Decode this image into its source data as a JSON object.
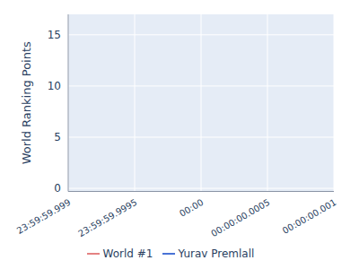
{
  "chart_data": {
    "type": "line",
    "ylabel": "World Ranking Points",
    "x": [
      1735689600000
    ],
    "series": [
      {
        "name": "Yurav Premlall",
        "color": "#2f5fd0",
        "values": [
          null
        ]
      },
      {
        "name": "World #1",
        "color": "#e07070",
        "values": [
          null
        ]
      }
    ],
    "xlim": [
      1735689599999,
      1735689600001
    ],
    "xticks": [
      {
        "value": 1735689599999,
        "label": "23:59:59.999"
      },
      {
        "value": 1735689599999.5,
        "label": "23:59:59.9995"
      },
      {
        "value": 1735689600000,
        "label": "00:00"
      },
      {
        "value": 1735689600000.5,
        "label": "00:00:00.0005"
      },
      {
        "value": 1735689600001,
        "label": "00:00:00.001"
      }
    ],
    "ylim": [
      -0.3,
      17
    ],
    "yticks": [
      0,
      5,
      10,
      15
    ],
    "grid": true,
    "legend": "bottom"
  }
}
